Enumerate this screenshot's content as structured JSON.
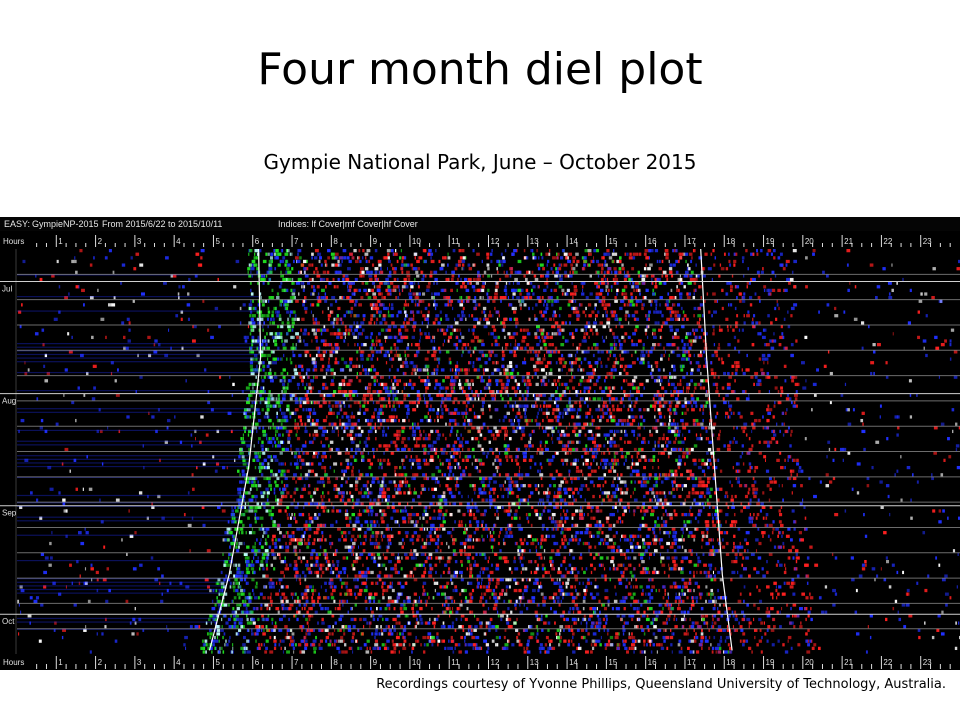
{
  "slide": {
    "title": "Four month diel plot",
    "subtitle": "Gympie National Park,  June – October 2015",
    "credit": "Recordings courtesy of Yvonne Phillips,  Queensland University of Technology, Australia."
  },
  "header": {
    "easy_label": "EASY:",
    "site": "GympieNP-2015",
    "range": "From 2015/6/22 to 2015/10/11",
    "indices": "Indices: lf Cover|mf Cover|hf Cover"
  },
  "colors": {
    "lf_cover": "#ff2020",
    "mf_cover": "#20e020",
    "hf_cover": "#2030ff",
    "background": "#000000",
    "axis": "#e0e0e0"
  },
  "chart_data": {
    "type": "heatmap",
    "title": "Four month diel plot",
    "subtitle": "Gympie National Park,  June – October 2015",
    "x_axis_label": "Hours",
    "x_ticks": [
      "1",
      "2",
      "3",
      "4",
      "5",
      "6",
      "7",
      "8",
      "9",
      "10",
      "11",
      "12",
      "13",
      "14",
      "15",
      "16",
      "17",
      "18",
      "19",
      "20",
      "21",
      "22",
      "23"
    ],
    "x_range": [
      0,
      24
    ],
    "y_labels": [
      {
        "label": "Jul",
        "day": 9
      },
      {
        "label": "Aug",
        "day": 40
      },
      {
        "label": "Sep",
        "day": 71
      },
      {
        "label": "Oct",
        "day": 101
      }
    ],
    "start_date": "2015/6/22",
    "end_date": "2015/10/11",
    "day_count": 112,
    "channels": [
      "lf Cover",
      "mf Cover",
      "hf Cover"
    ],
    "sunrise_curve": [
      {
        "day": 0,
        "hour": 6.15
      },
      {
        "day": 30,
        "hour": 6.2
      },
      {
        "day": 60,
        "hour": 5.9
      },
      {
        "day": 90,
        "hour": 5.4
      },
      {
        "day": 111,
        "hour": 4.9
      }
    ],
    "sunset_curve": [
      {
        "day": 0,
        "hour": 17.4
      },
      {
        "day": 30,
        "hour": 17.55
      },
      {
        "day": 60,
        "hour": 17.75
      },
      {
        "day": 90,
        "hour": 17.95
      },
      {
        "day": 111,
        "hour": 18.2
      }
    ],
    "week_gridlines": true
  }
}
